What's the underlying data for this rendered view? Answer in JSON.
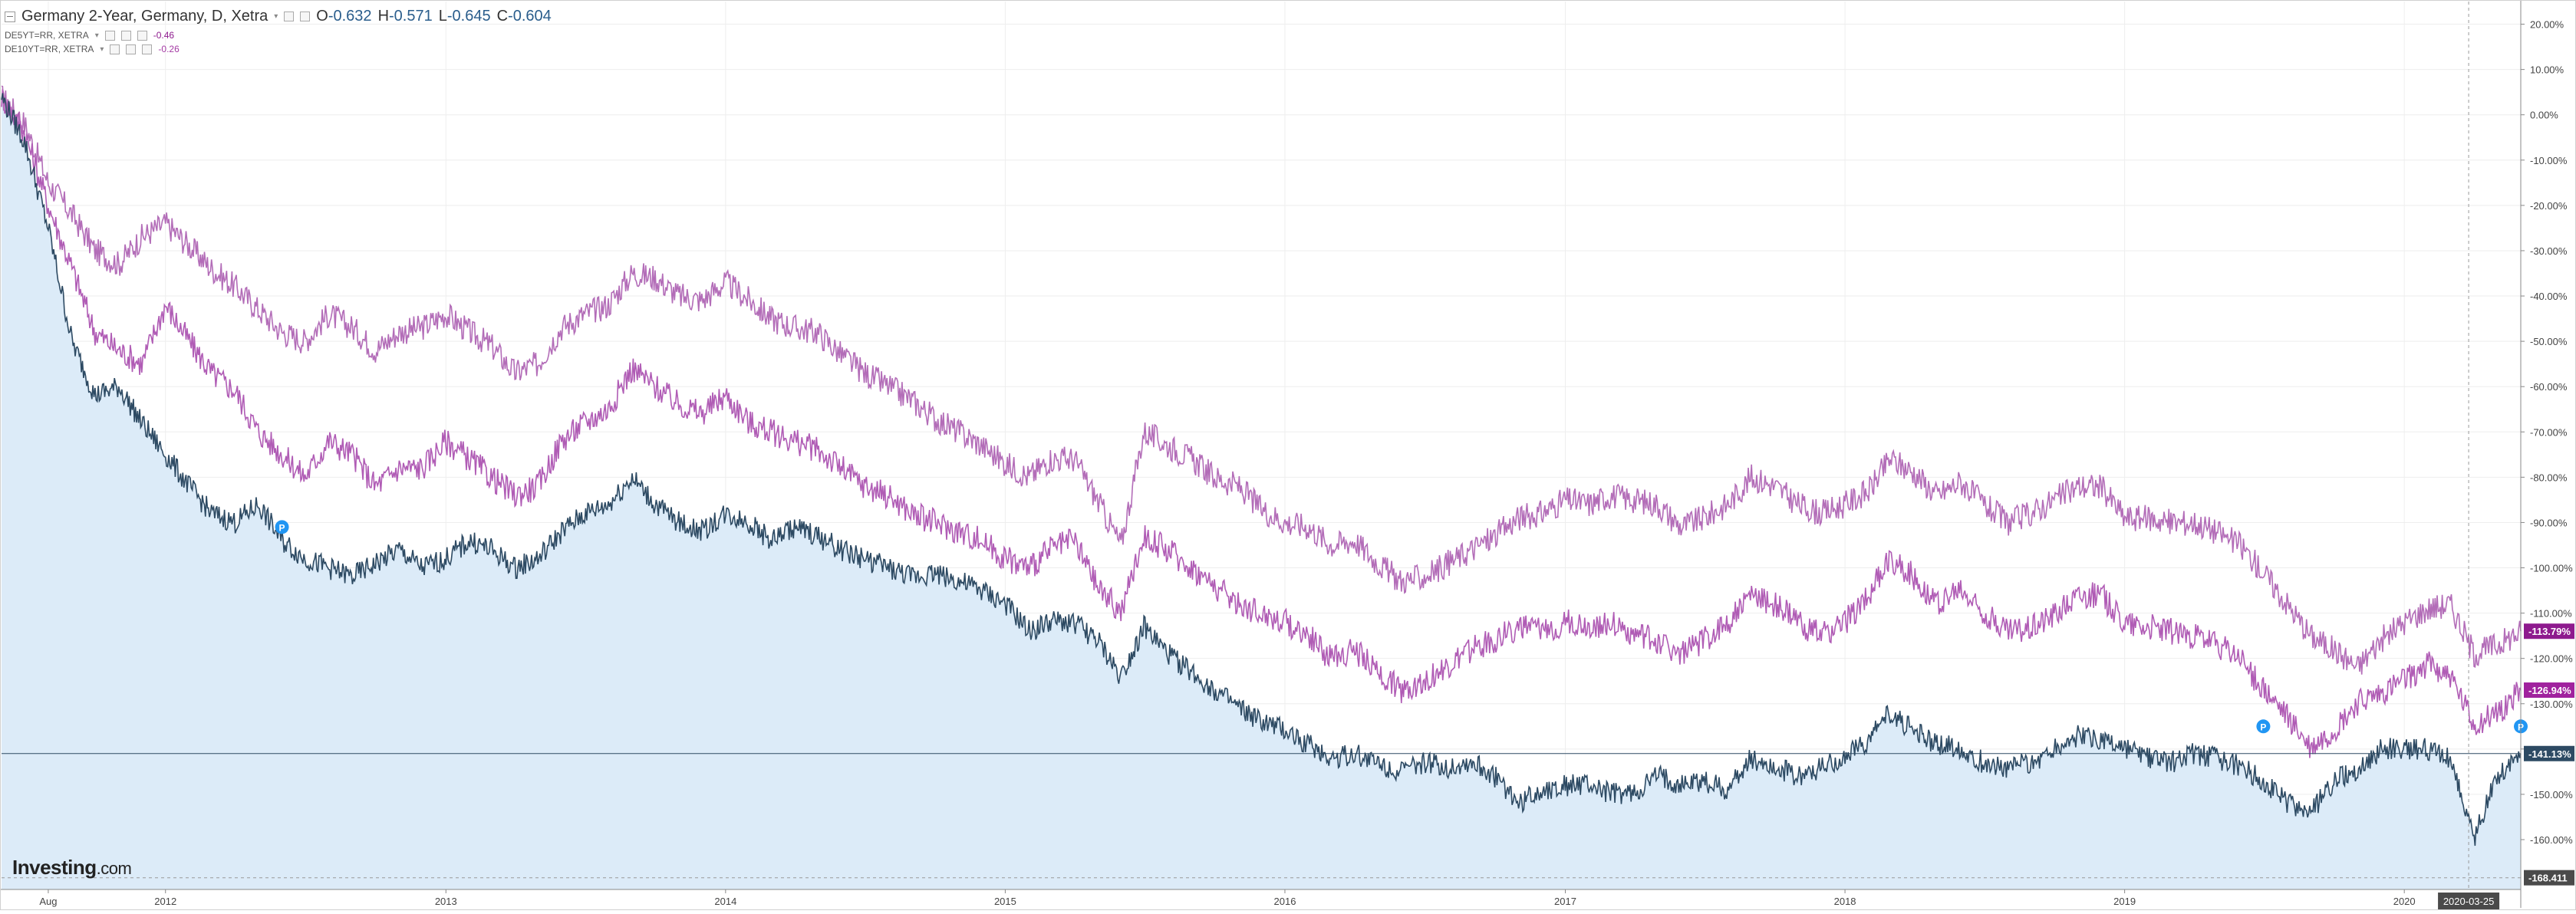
{
  "header": {
    "title": "Germany 2-Year, Germany, D, Xetra",
    "ohlc": [
      {
        "key": "O",
        "value": "-0.632"
      },
      {
        "key": "H",
        "value": "-0.571"
      },
      {
        "key": "L",
        "value": "-0.645"
      },
      {
        "key": "C",
        "value": "-0.604"
      }
    ],
    "comparisons": [
      {
        "symbol": "DE5YT=RR, XETRA",
        "value": "-0.46",
        "color": "#8e1a8e"
      },
      {
        "symbol": "DE10YT=RR, XETRA",
        "value": "-0.26",
        "color": "#a43aa4"
      }
    ]
  },
  "logo": {
    "brand": "Investing",
    "suffix": ".com"
  },
  "colors": {
    "main_line": "#2d4a63",
    "main_fill": "#dcebf8",
    "de5y_line": "#b05cb5",
    "de10y_line": "#b36db8",
    "de5y_label_bg": "#8e1a8e",
    "de10y_label_bg": "#a0229e",
    "main_label_bg": "#2d4a63",
    "grid": "#eeeeee",
    "event_marker": "#2196f3"
  },
  "chart_data": {
    "type": "line",
    "ylabel": "",
    "y_unit": "%",
    "y_ticks": [
      "20.00%",
      "10.00%",
      "0.00%",
      "-10.00%",
      "-20.00%",
      "-30.00%",
      "-40.00%",
      "-50.00%",
      "-60.00%",
      "-70.00%",
      "-80.00%",
      "-90.00%",
      "-100.00%",
      "-110.00%",
      "-120.00%",
      "-130.00%",
      "-140.00%",
      "-150.00%",
      "-160.00%"
    ],
    "ylim": [
      -171,
      25
    ],
    "x_ticks": [
      "Aug",
      "2012",
      "2013",
      "2014",
      "2015",
      "2016",
      "2017",
      "2018",
      "2019",
      "2020"
    ],
    "x_tick_dates": [
      "2011-08",
      "2012-01",
      "2013-01",
      "2014-01",
      "2015-01",
      "2016-01",
      "2017-01",
      "2018-01",
      "2019-01",
      "2020-01"
    ],
    "xlim": [
      "2011-06",
      "2020-06"
    ],
    "crosshair_date": "2020-03-25",
    "crosshair_value": "-168.411",
    "grid": true,
    "series": [
      {
        "name": "DE10YT=RR, XETRA",
        "last_label": "-113.79%",
        "x": [
          "2011-06-01",
          "2011-07-01",
          "2011-08-01",
          "2011-09-01",
          "2011-10-01",
          "2011-11-01",
          "2011-12-01",
          "2012-01-01",
          "2012-02-01",
          "2012-03-01",
          "2012-04-01",
          "2012-05-01",
          "2012-06-01",
          "2012-07-01",
          "2012-08-01",
          "2012-09-01",
          "2012-10-01",
          "2012-11-01",
          "2012-12-01",
          "2013-01-01",
          "2013-02-01",
          "2013-03-01",
          "2013-04-01",
          "2013-05-01",
          "2013-06-01",
          "2013-07-01",
          "2013-08-01",
          "2013-09-01",
          "2013-10-01",
          "2013-11-01",
          "2013-12-01",
          "2014-01-01",
          "2014-02-01",
          "2014-03-01",
          "2014-04-01",
          "2014-05-01",
          "2014-06-01",
          "2014-07-01",
          "2014-08-01",
          "2014-09-01",
          "2014-10-01",
          "2014-11-01",
          "2014-12-01",
          "2015-01-01",
          "2015-02-01",
          "2015-03-01",
          "2015-04-01",
          "2015-05-01",
          "2015-06-01",
          "2015-07-01",
          "2015-08-01",
          "2015-09-01",
          "2015-10-01",
          "2015-11-01",
          "2015-12-01",
          "2016-01-01",
          "2016-02-01",
          "2016-03-01",
          "2016-04-01",
          "2016-05-01",
          "2016-06-01",
          "2016-07-01",
          "2016-08-01",
          "2016-09-01",
          "2016-10-01",
          "2016-11-01",
          "2016-12-01",
          "2017-01-01",
          "2017-02-01",
          "2017-03-01",
          "2017-04-01",
          "2017-05-01",
          "2017-06-01",
          "2017-07-01",
          "2017-08-01",
          "2017-09-01",
          "2017-10-01",
          "2017-11-01",
          "2017-12-01",
          "2018-01-01",
          "2018-02-01",
          "2018-03-01",
          "2018-04-01",
          "2018-05-01",
          "2018-06-01",
          "2018-07-01",
          "2018-08-01",
          "2018-09-01",
          "2018-10-01",
          "2018-11-01",
          "2018-12-01",
          "2019-01-01",
          "2019-02-01",
          "2019-03-01",
          "2019-04-01",
          "2019-05-01",
          "2019-06-01",
          "2019-07-01",
          "2019-08-01",
          "2019-09-01",
          "2019-10-01",
          "2019-11-01",
          "2019-12-01",
          "2020-01-01",
          "2020-02-01",
          "2020-03-01",
          "2020-04-01",
          "2020-05-01",
          "2020-06-01"
        ],
        "values": [
          4,
          -2,
          -15,
          -22,
          -30,
          -33,
          -27,
          -24,
          -29,
          -34,
          -38,
          -43,
          -48,
          -50,
          -44,
          -47,
          -52,
          -48,
          -47,
          -44,
          -48,
          -51,
          -57,
          -55,
          -47,
          -44,
          -42,
          -35,
          -36,
          -40,
          -41,
          -37,
          -41,
          -45,
          -47,
          -48,
          -53,
          -57,
          -60,
          -63,
          -67,
          -70,
          -73,
          -77,
          -80,
          -76,
          -76,
          -85,
          -95,
          -70,
          -73,
          -76,
          -80,
          -82,
          -87,
          -90,
          -91,
          -95,
          -94,
          -99,
          -103,
          -102,
          -99,
          -96,
          -93,
          -89,
          -88,
          -85,
          -86,
          -84,
          -85,
          -86,
          -91,
          -89,
          -86,
          -80,
          -82,
          -86,
          -88,
          -86,
          -83,
          -76,
          -79,
          -84,
          -81,
          -86,
          -90,
          -88,
          -85,
          -82,
          -82,
          -89,
          -89,
          -90,
          -90,
          -92,
          -95,
          -101,
          -108,
          -115,
          -118,
          -122,
          -116,
          -112,
          -109,
          -108,
          -119,
          -117,
          -114
        ]
      },
      {
        "name": "DE5YT=RR, XETRA",
        "last_label": "-126.94%",
        "x": [
          "2011-06-01",
          "2011-07-01",
          "2011-08-01",
          "2011-09-01",
          "2011-10-01",
          "2011-11-01",
          "2011-12-01",
          "2012-01-01",
          "2012-02-01",
          "2012-03-01",
          "2012-04-01",
          "2012-05-01",
          "2012-06-01",
          "2012-07-01",
          "2012-08-01",
          "2012-09-01",
          "2012-10-01",
          "2012-11-01",
          "2012-12-01",
          "2013-01-01",
          "2013-02-01",
          "2013-03-01",
          "2013-04-01",
          "2013-05-01",
          "2013-06-01",
          "2013-07-01",
          "2013-08-01",
          "2013-09-01",
          "2013-10-01",
          "2013-11-01",
          "2013-12-01",
          "2014-01-01",
          "2014-02-01",
          "2014-03-01",
          "2014-04-01",
          "2014-05-01",
          "2014-06-01",
          "2014-07-01",
          "2014-08-01",
          "2014-09-01",
          "2014-10-01",
          "2014-11-01",
          "2014-12-01",
          "2015-01-01",
          "2015-02-01",
          "2015-03-01",
          "2015-04-01",
          "2015-05-01",
          "2015-06-01",
          "2015-07-01",
          "2015-08-01",
          "2015-09-01",
          "2015-10-01",
          "2015-11-01",
          "2015-12-01",
          "2016-01-01",
          "2016-02-01",
          "2016-03-01",
          "2016-04-01",
          "2016-05-01",
          "2016-06-01",
          "2016-07-01",
          "2016-08-01",
          "2016-09-01",
          "2016-10-01",
          "2016-11-01",
          "2016-12-01",
          "2017-01-01",
          "2017-02-01",
          "2017-03-01",
          "2017-04-01",
          "2017-05-01",
          "2017-06-01",
          "2017-07-01",
          "2017-08-01",
          "2017-09-01",
          "2017-10-01",
          "2017-11-01",
          "2017-12-01",
          "2018-01-01",
          "2018-02-01",
          "2018-03-01",
          "2018-04-01",
          "2018-05-01",
          "2018-06-01",
          "2018-07-01",
          "2018-08-01",
          "2018-09-01",
          "2018-10-01",
          "2018-11-01",
          "2018-12-01",
          "2019-01-01",
          "2019-02-01",
          "2019-03-01",
          "2019-04-01",
          "2019-05-01",
          "2019-06-01",
          "2019-07-01",
          "2019-08-01",
          "2019-09-01",
          "2019-10-01",
          "2019-11-01",
          "2019-12-01",
          "2020-01-01",
          "2020-02-01",
          "2020-03-01",
          "2020-04-01",
          "2020-05-01",
          "2020-06-01"
        ],
        "values": [
          4,
          -4,
          -20,
          -34,
          -48,
          -52,
          -55,
          -42,
          -50,
          -57,
          -61,
          -70,
          -75,
          -80,
          -72,
          -75,
          -82,
          -78,
          -78,
          -72,
          -76,
          -80,
          -84,
          -82,
          -72,
          -68,
          -65,
          -56,
          -60,
          -64,
          -66,
          -62,
          -68,
          -70,
          -72,
          -74,
          -78,
          -82,
          -84,
          -88,
          -90,
          -92,
          -94,
          -98,
          -100,
          -96,
          -94,
          -104,
          -110,
          -93,
          -96,
          -100,
          -104,
          -108,
          -110,
          -112,
          -115,
          -120,
          -118,
          -123,
          -127,
          -125,
          -122,
          -118,
          -116,
          -113,
          -114,
          -112,
          -113,
          -112,
          -115,
          -116,
          -119,
          -116,
          -112,
          -106,
          -108,
          -112,
          -115,
          -112,
          -106,
          -98,
          -102,
          -108,
          -105,
          -110,
          -114,
          -113,
          -110,
          -106,
          -106,
          -112,
          -113,
          -114,
          -115,
          -117,
          -120,
          -127,
          -133,
          -140,
          -136,
          -130,
          -128,
          -125,
          -121,
          -124,
          -135,
          -132,
          -127
        ]
      },
      {
        "name": "Germany 2-Year, Germany, D, Xetra",
        "last_label": "-141.13%",
        "x": [
          "2011-06-01",
          "2011-07-01",
          "2011-08-01",
          "2011-09-01",
          "2011-10-01",
          "2011-11-01",
          "2011-12-01",
          "2012-01-01",
          "2012-02-01",
          "2012-03-01",
          "2012-04-01",
          "2012-05-01",
          "2012-06-01",
          "2012-07-01",
          "2012-08-01",
          "2012-09-01",
          "2012-10-01",
          "2012-11-01",
          "2012-12-01",
          "2013-01-01",
          "2013-02-01",
          "2013-03-01",
          "2013-04-01",
          "2013-05-01",
          "2013-06-01",
          "2013-07-01",
          "2013-08-01",
          "2013-09-01",
          "2013-10-01",
          "2013-11-01",
          "2013-12-01",
          "2014-01-01",
          "2014-02-01",
          "2014-03-01",
          "2014-04-01",
          "2014-05-01",
          "2014-06-01",
          "2014-07-01",
          "2014-08-01",
          "2014-09-01",
          "2014-10-01",
          "2014-11-01",
          "2014-12-01",
          "2015-01-01",
          "2015-02-01",
          "2015-03-01",
          "2015-04-01",
          "2015-05-01",
          "2015-06-01",
          "2015-07-01",
          "2015-08-01",
          "2015-09-01",
          "2015-10-01",
          "2015-11-01",
          "2015-12-01",
          "2016-01-01",
          "2016-02-01",
          "2016-03-01",
          "2016-04-01",
          "2016-05-01",
          "2016-06-01",
          "2016-07-01",
          "2016-08-01",
          "2016-09-01",
          "2016-10-01",
          "2016-11-01",
          "2016-12-01",
          "2017-01-01",
          "2017-02-01",
          "2017-03-01",
          "2017-04-01",
          "2017-05-01",
          "2017-06-01",
          "2017-07-01",
          "2017-08-01",
          "2017-09-01",
          "2017-10-01",
          "2017-11-01",
          "2017-12-01",
          "2018-01-01",
          "2018-02-01",
          "2018-03-01",
          "2018-04-01",
          "2018-05-01",
          "2018-06-01",
          "2018-07-01",
          "2018-08-01",
          "2018-09-01",
          "2018-10-01",
          "2018-11-01",
          "2018-12-01",
          "2019-01-01",
          "2019-02-01",
          "2019-03-01",
          "2019-04-01",
          "2019-05-01",
          "2019-06-01",
          "2019-07-01",
          "2019-08-01",
          "2019-09-01",
          "2019-10-01",
          "2019-11-01",
          "2019-12-01",
          "2020-01-01",
          "2020-02-01",
          "2020-03-01",
          "2020-04-01",
          "2020-05-01",
          "2020-06-01"
        ],
        "values": [
          4,
          -6,
          -25,
          -50,
          -62,
          -60,
          -68,
          -75,
          -82,
          -88,
          -90,
          -86,
          -94,
          -98,
          -100,
          -102,
          -99,
          -96,
          -100,
          -98,
          -94,
          -96,
          -100,
          -98,
          -92,
          -88,
          -86,
          -80,
          -86,
          -90,
          -92,
          -88,
          -90,
          -94,
          -91,
          -93,
          -96,
          -98,
          -100,
          -102,
          -101,
          -103,
          -105,
          -108,
          -114,
          -112,
          -112,
          -116,
          -124,
          -113,
          -119,
          -123,
          -127,
          -131,
          -134,
          -136,
          -139,
          -142,
          -141,
          -143,
          -145,
          -143,
          -144,
          -143,
          -146,
          -152,
          -149,
          -148,
          -148,
          -150,
          -150,
          -146,
          -148,
          -147,
          -149,
          -142,
          -144,
          -146,
          -144,
          -142,
          -138,
          -132,
          -136,
          -139,
          -140,
          -143,
          -144,
          -143,
          -140,
          -137,
          -138,
          -140,
          -142,
          -143,
          -141,
          -142,
          -144,
          -147,
          -152,
          -154,
          -147,
          -145,
          -140,
          -140,
          -140,
          -142,
          -160,
          -146,
          -141
        ]
      }
    ],
    "event_markers": [
      {
        "date": "2012-06-01",
        "value": -91
      },
      {
        "date": "2019-07-01",
        "value": -135
      },
      {
        "date": "2020-06-01",
        "value": -135
      }
    ]
  }
}
